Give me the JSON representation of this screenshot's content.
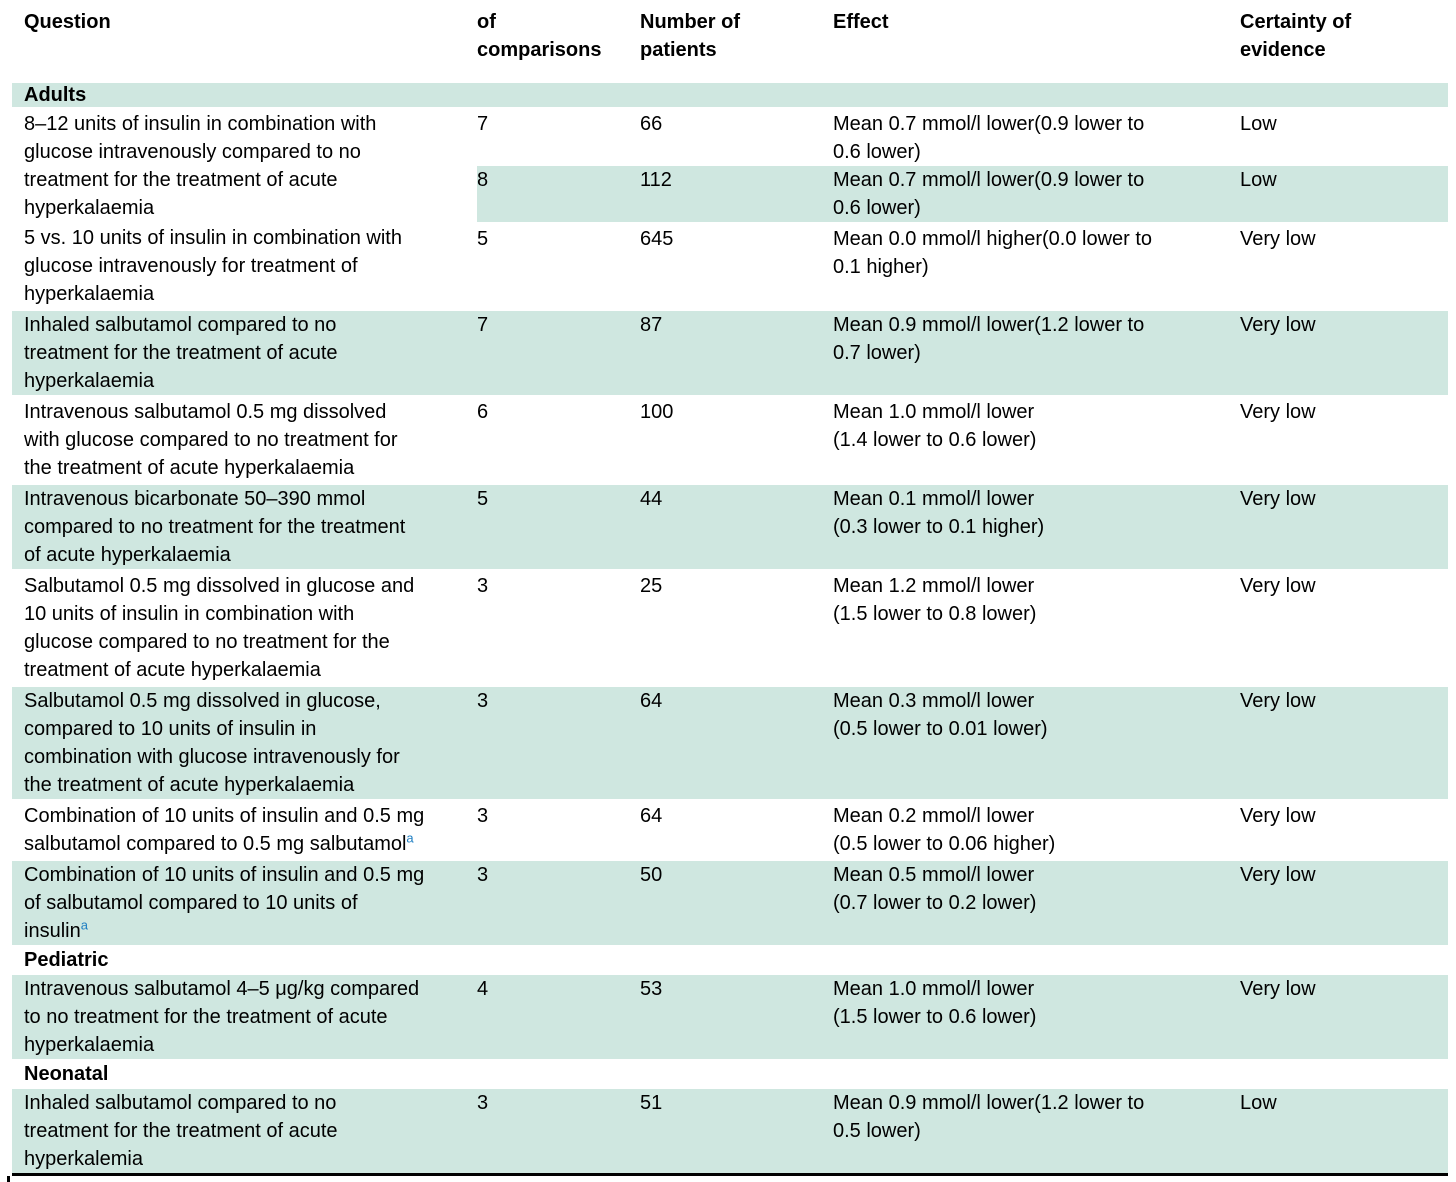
{
  "colors": {
    "row_highlight": "#cfe7e0",
    "footnote_blue": "#1e7ec2",
    "rule_black": "#000000"
  },
  "table": {
    "header": {
      "question": "Question",
      "comparisons": "of\ncomparisons",
      "patients": "Number of\npatients",
      "effect": "Effect",
      "certainty": "Certainty of\nevidence"
    },
    "sections": {
      "adults": "Adults",
      "pediatric": "Pediatric",
      "neonatal": "Neonatal"
    },
    "rows": [
      {
        "question": "8–12 units of insulin in combination with\nglucose intravenously compared to no\ntreatment for the treatment of acute\nhyperkalaemia",
        "comparisons": "7",
        "patients": "66",
        "effect": "Mean 0.7 mmol/l lower(0.9 lower to\n0.6 lower)",
        "certainty": "Low"
      },
      {
        "comparisons": "8",
        "patients": "112",
        "effect": "Mean 0.7 mmol/l lower(0.9 lower to\n0.6 lower)",
        "certainty": "Low"
      },
      {
        "question": "5 vs. 10 units of insulin in combination with\nglucose intravenously for treatment of\nhyperkalaemia",
        "comparisons": "5",
        "patients": "645",
        "effect": "Mean 0.0 mmol/l higher(0.0 lower to\n0.1 higher)",
        "certainty": "Very low"
      },
      {
        "question": "Inhaled salbutamol compared to no\ntreatment for the treatment of acute\nhyperkalaemia",
        "comparisons": "7",
        "patients": "87",
        "effect": "Mean 0.9 mmol/l lower(1.2 lower to\n0.7 lower)",
        "certainty": "Very low"
      },
      {
        "question": "Intravenous salbutamol 0.5 mg dissolved\nwith glucose compared to no treatment for\nthe treatment of acute hyperkalaemia",
        "comparisons": "6",
        "patients": "100",
        "effect": "Mean 1.0 mmol/l lower\n(1.4 lower to 0.6 lower)",
        "certainty": "Very low"
      },
      {
        "question": "Intravenous bicarbonate 50–390 mmol\ncompared to no treatment for the treatment\nof acute hyperkalaemia",
        "comparisons": "5",
        "patients": "44",
        "effect": "Mean 0.1 mmol/l lower\n(0.3 lower to 0.1 higher)",
        "certainty": "Very low"
      },
      {
        "question": "Salbutamol 0.5 mg dissolved in glucose and\n10 units of insulin in combination with\nglucose compared to no treatment for the\ntreatment of acute hyperkalaemia",
        "comparisons": "3",
        "patients": "25",
        "effect": "Mean 1.2 mmol/l lower\n(1.5 lower to 0.8 lower)",
        "certainty": "Very low"
      },
      {
        "question": "Salbutamol 0.5 mg dissolved in glucose,\ncompared to 10 units of insulin in\ncombination with glucose intravenously for\nthe treatment of acute hyperkalaemia",
        "comparisons": "3",
        "patients": "64",
        "effect": "Mean 0.3 mmol/l lower\n(0.5 lower to 0.01 lower)",
        "certainty": "Very low"
      },
      {
        "question": "Combination of 10 units of insulin and 0.5 mg\nsalbutamol compared to 0.5 mg salbutamol",
        "sup": "a",
        "comparisons": "3",
        "patients": "64",
        "effect": "Mean 0.2 mmol/l lower\n(0.5 lower to 0.06 higher)",
        "certainty": "Very low"
      },
      {
        "question": "Combination of 10 units of insulin and 0.5 mg\nof salbutamol compared to 10 units of\ninsulin",
        "sup": "a",
        "comparisons": "3",
        "patients": "50",
        "effect": "Mean 0.5 mmol/l lower\n(0.7 lower to 0.2 lower)",
        "certainty": "Very low"
      },
      {
        "question": "Intravenous salbutamol 4–5 μg/kg compared\nto no treatment for the treatment of acute\nhyperkalaemia",
        "comparisons": "4",
        "patients": "53",
        "effect": "Mean 1.0 mmol/l lower\n(1.5 lower to 0.6 lower)",
        "certainty": "Very low"
      },
      {
        "question": "Inhaled salbutamol compared to no\ntreatment for the treatment of acute\nhyperkalemia",
        "comparisons": "3",
        "patients": "51",
        "effect": "Mean 0.9 mmol/l lower(1.2 lower to\n0.5 lower)",
        "certainty": "Low"
      }
    ]
  }
}
